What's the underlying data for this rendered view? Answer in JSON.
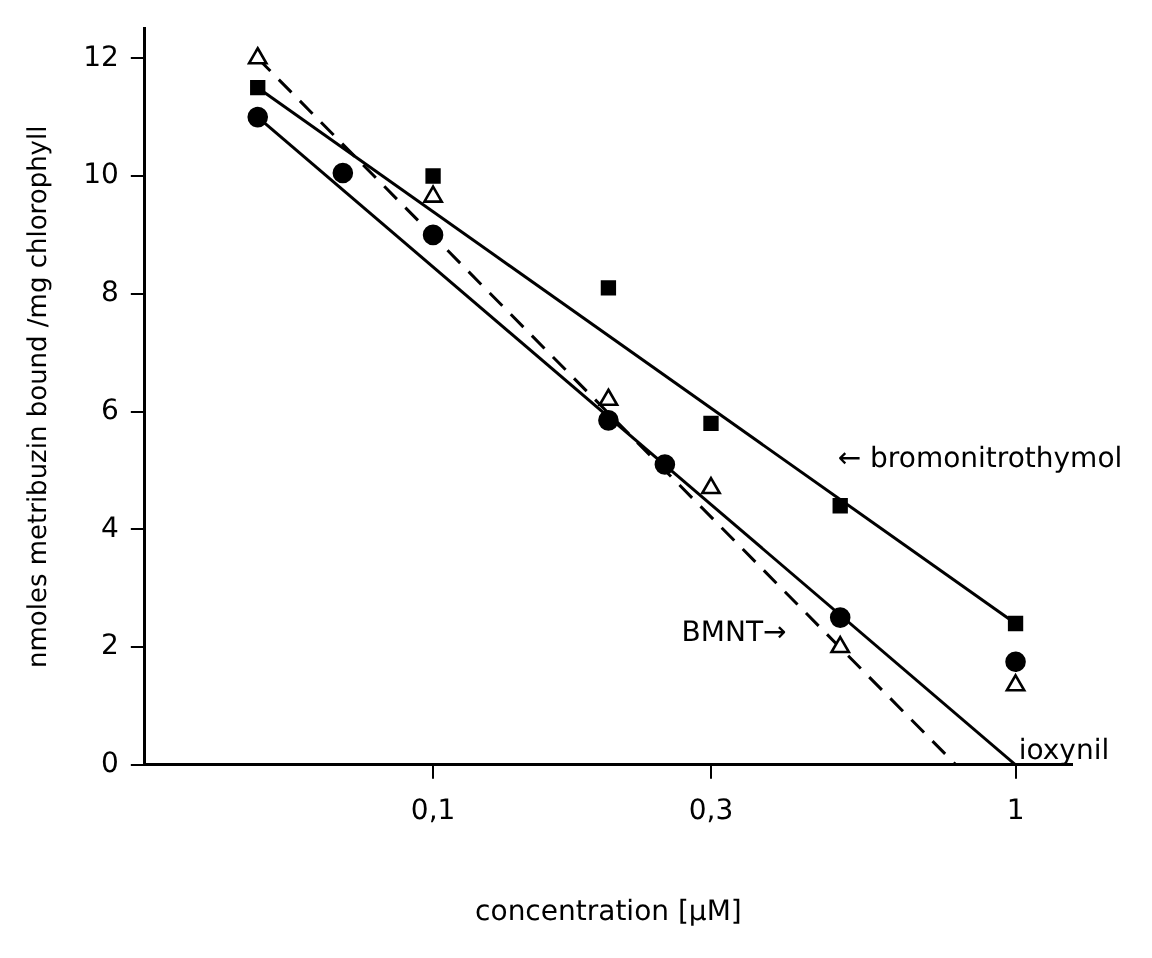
{
  "chart_data": {
    "type": "scatter",
    "xlabel": "concentration [μM]",
    "ylabel": "nmoles metribuzin bound /mg chlorophyll",
    "log": "x",
    "grid": false,
    "legend": false,
    "xlim": [
      0.032,
      1.25
    ],
    "xticks": [
      {
        "value": 0.1,
        "label": "0,1"
      },
      {
        "value": 0.3,
        "label": "0,3"
      },
      {
        "value": 1,
        "label": "1"
      }
    ],
    "ylim": [
      0,
      12.5
    ],
    "yticks": [
      0,
      2,
      4,
      6,
      8,
      10,
      12
    ],
    "series": [
      {
        "type": "scatter",
        "marker": "square",
        "color": "#000000",
        "x": [
          0.05,
          0.1,
          0.2,
          0.3,
          0.5,
          1
        ],
        "values": [
          11.5,
          10.0,
          8.1,
          5.8,
          4.4,
          2.4
        ]
      },
      {
        "type": "scatter",
        "marker": "circle",
        "color": "#000000",
        "x": [
          0.05,
          0.07,
          0.1,
          0.2,
          0.25,
          0.5,
          1
        ],
        "values": [
          11.0,
          10.05,
          9.0,
          5.85,
          5.1,
          2.5,
          1.75
        ]
      },
      {
        "type": "scatter",
        "marker": "triangle",
        "color": "#000000",
        "x": [
          0.05,
          0.1,
          0.2,
          0.3,
          0.5,
          1
        ],
        "values": [
          12.0,
          9.65,
          6.2,
          4.7,
          2.0,
          1.35
        ]
      },
      {
        "type": "line",
        "marker": "none",
        "line_style": "solid",
        "color": "#000000",
        "x": [
          0.05,
          1
        ],
        "values": [
          11.5,
          2.4
        ]
      },
      {
        "type": "line",
        "marker": "none",
        "line_style": "solid",
        "color": "#000000",
        "x": [
          0.05,
          1
        ],
        "values": [
          11.0,
          0
        ]
      },
      {
        "type": "line",
        "marker": "none",
        "line_style": "dashed",
        "color": "#000000",
        "x": [
          0.05,
          0.79
        ],
        "values": [
          12.0,
          0
        ]
      }
    ],
    "annotations": [
      "← bromonitrothymol",
      "BMNT→",
      "ioxynil"
    ]
  }
}
